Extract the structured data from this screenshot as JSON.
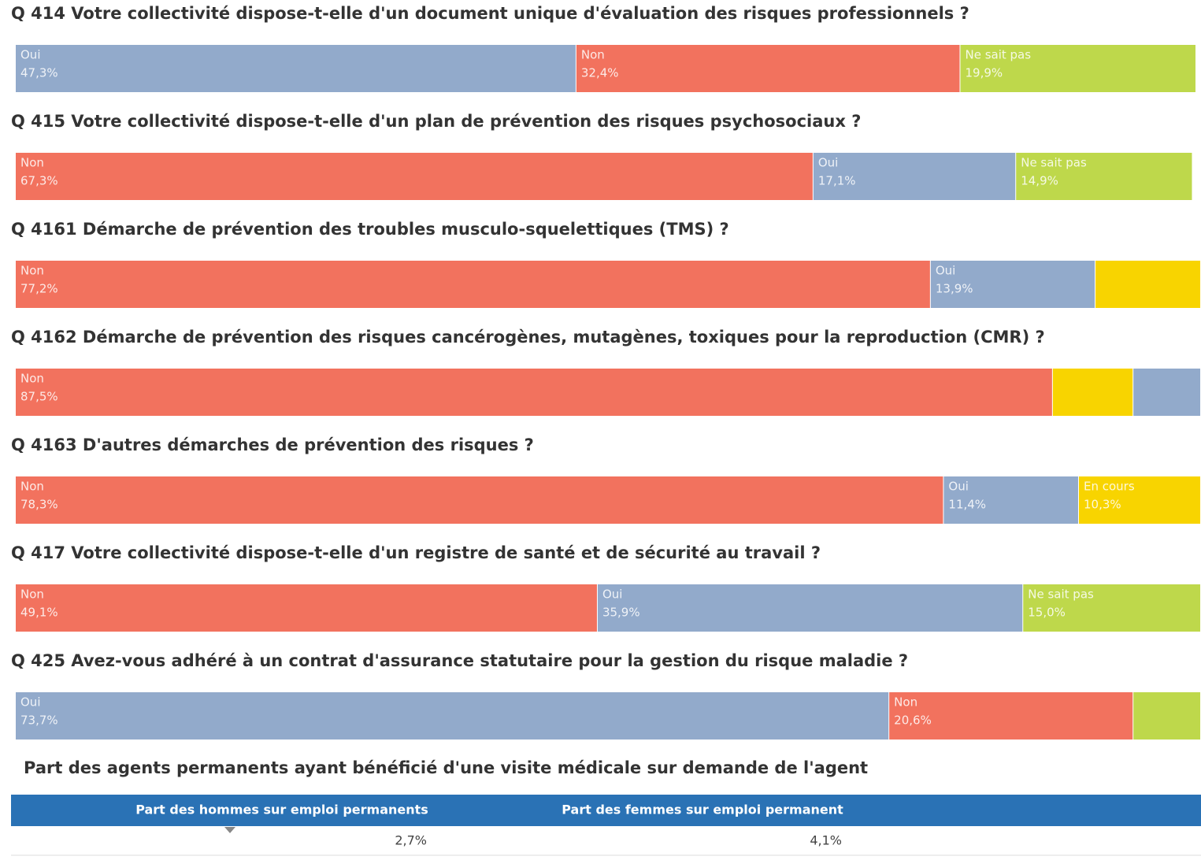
{
  "chart_data": [
    {
      "type": "stacked_bar",
      "title": "Q 414 Votre collectivité dispose-t-elle d'un document unique d'évaluation des risques professionnels ?",
      "categories": [
        "Oui",
        "Non",
        "Ne sait pas"
      ],
      "values": [
        47.3,
        32.4,
        19.9
      ],
      "value_labels": [
        "47,3%",
        "32,4%",
        "19,9%"
      ],
      "colors": [
        "#92aacb",
        "#f2725e",
        "#bed84b"
      ],
      "xlim": [
        0,
        100
      ]
    },
    {
      "type": "stacked_bar",
      "title": "Q 415 Votre collectivité dispose-t-elle d'un plan de prévention des risques psychosociaux ?",
      "categories": [
        "Non",
        "Oui",
        "Ne sait pas"
      ],
      "values": [
        67.3,
        17.1,
        14.9
      ],
      "value_labels": [
        "67,3%",
        "17,1%",
        "14,9%"
      ],
      "colors": [
        "#f2725e",
        "#92aacb",
        "#bed84b"
      ],
      "xlim": [
        0,
        100
      ]
    },
    {
      "type": "stacked_bar",
      "title": "Q 4161 Démarche de prévention des troubles musculo-squelettiques (TMS) ?",
      "categories": [
        "Non",
        "Oui",
        null
      ],
      "values": [
        77.2,
        13.9,
        8.9
      ],
      "value_labels": [
        "77,2%",
        "13,9%",
        null
      ],
      "colors": [
        "#f2725e",
        "#92aacb",
        "#f8d400"
      ],
      "xlim": [
        0,
        100
      ]
    },
    {
      "type": "stacked_bar",
      "title": "Q 4162 Démarche de prévention des risques cancérogènes, mutagènes, toxiques pour la reproduction (CMR) ?",
      "categories": [
        "Non",
        null,
        null
      ],
      "values": [
        87.5,
        6.8,
        5.7
      ],
      "value_labels": [
        "87,5%",
        null,
        null
      ],
      "colors": [
        "#f2725e",
        "#f8d400",
        "#92aacb"
      ],
      "xlim": [
        0,
        100
      ]
    },
    {
      "type": "stacked_bar",
      "title": "Q 4163 D'autres démarches de prévention des risques ?",
      "categories": [
        "Non",
        "Oui",
        "En cours"
      ],
      "values": [
        78.3,
        11.4,
        10.3
      ],
      "value_labels": [
        "78,3%",
        "11,4%",
        "10,3%"
      ],
      "colors": [
        "#f2725e",
        "#92aacb",
        "#f8d400"
      ],
      "xlim": [
        0,
        100
      ]
    },
    {
      "type": "stacked_bar",
      "title": "Q 417 Votre collectivité dispose-t-elle d'un registre de santé et de sécurité au travail ?",
      "categories": [
        "Non",
        "Oui",
        "Ne sait pas"
      ],
      "values": [
        49.1,
        35.9,
        15.0
      ],
      "value_labels": [
        "49,1%",
        "35,9%",
        "15,0%"
      ],
      "colors": [
        "#f2725e",
        "#92aacb",
        "#bed84b"
      ],
      "xlim": [
        0,
        100
      ]
    },
    {
      "type": "stacked_bar",
      "title": "Q 425 Avez-vous adhéré à un contrat d'assurance statutaire pour la gestion du risque maladie ?",
      "categories": [
        "Oui",
        "Non",
        null
      ],
      "values": [
        73.7,
        20.6,
        5.7
      ],
      "value_labels": [
        "73,7%",
        "20,6%",
        null
      ],
      "colors": [
        "#92aacb",
        "#f2725e",
        "#bed84b"
      ],
      "xlim": [
        0,
        100
      ]
    }
  ],
  "table": {
    "title": "Part des agents permanents ayant bénéficié d'une visite médicale sur demande de l'agent",
    "columns": [
      "Part des hommes sur emploi permanents",
      "Part des femmes sur emploi permanent"
    ],
    "rows": [
      [
        "2,7%",
        "4,1%"
      ]
    ]
  }
}
